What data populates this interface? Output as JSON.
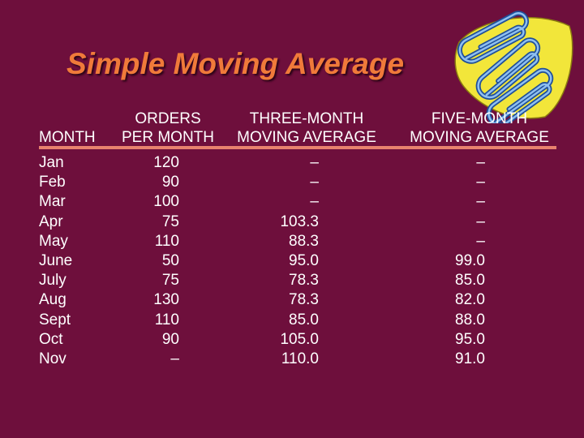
{
  "title": "Simple Moving Average",
  "headers": {
    "month": "MONTH",
    "orders_line1": "ORDERS",
    "orders_line2": "PER MONTH",
    "three_line1": "THREE-MONTH",
    "three_line2": "MOVING AVERAGE",
    "five_line1": "FIVE-MONTH",
    "five_line2": "MOVING AVERAGE"
  },
  "rows": [
    {
      "month": "Jan",
      "orders": "120",
      "three": "–",
      "five": "–"
    },
    {
      "month": "Feb",
      "orders": "90",
      "three": "–",
      "five": "–"
    },
    {
      "month": "Mar",
      "orders": "100",
      "three": "–",
      "five": "–"
    },
    {
      "month": "Apr",
      "orders": "75",
      "three": "103.3",
      "five": "–"
    },
    {
      "month": "May",
      "orders": "110",
      "three": "88.3",
      "five": "–"
    },
    {
      "month": "June",
      "orders": "50",
      "three": "95.0",
      "five": "99.0"
    },
    {
      "month": "July",
      "orders": "75",
      "three": "78.3",
      "five": "85.0"
    },
    {
      "month": "Aug",
      "orders": "130",
      "three": "78.3",
      "five": "82.0"
    },
    {
      "month": "Sept",
      "orders": "110",
      "three": "85.0",
      "five": "88.0"
    },
    {
      "month": "Oct",
      "orders": "90",
      "three": "105.0",
      "five": "95.0"
    },
    {
      "month": "Nov",
      "orders": "–",
      "three": "110.0",
      "five": "91.0"
    }
  ],
  "colors": {
    "background": "#6e0f3c",
    "title": "#f07a3a",
    "rule": "#e8826e",
    "clip_backdrop": "#f2e63a",
    "paperclip": "#2e6fc4"
  },
  "icons": {
    "decoration": "paperclips-icon"
  }
}
